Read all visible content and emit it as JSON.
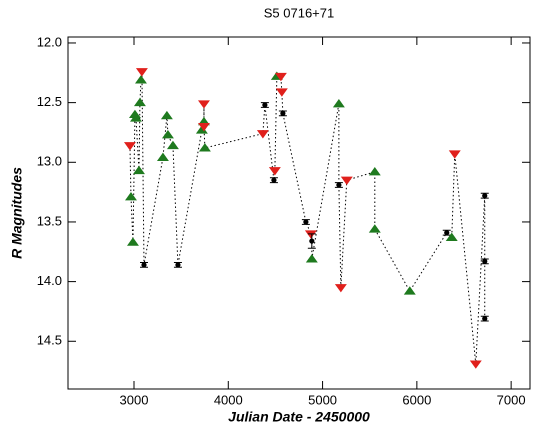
{
  "chart_data": {
    "type": "scatter",
    "title": "S5 0716+71",
    "x_label": "Julian Date - 2450000",
    "y_label": "R Magnitudes",
    "x": [
      2957,
      2968,
      2989,
      3010,
      3021,
      3053,
      3063,
      3074,
      3084,
      3106,
      3307,
      3349,
      3360,
      3413,
      3466,
      3720,
      3742,
      3742,
      3742,
      3752,
      4367,
      4388,
      4484,
      4494,
      4515,
      4558,
      4568,
      4579,
      4823,
      4876,
      4886,
      4886,
      5173,
      5173,
      5194,
      5257,
      5554,
      5554,
      5925,
      6317,
      6370,
      6402,
      6625,
      6720,
      6720,
      6720
    ],
    "y": [
      12.86,
      13.29,
      13.67,
      12.6,
      12.63,
      13.07,
      12.5,
      12.31,
      12.24,
      13.86,
      12.96,
      12.61,
      12.77,
      12.86,
      13.86,
      12.73,
      12.66,
      12.51,
      12.7,
      12.88,
      12.76,
      12.52,
      13.15,
      13.07,
      12.28,
      12.28,
      12.41,
      12.59,
      13.5,
      13.6,
      13.66,
      13.81,
      12.51,
      13.19,
      14.05,
      13.15,
      13.08,
      13.56,
      14.08,
      13.59,
      13.63,
      12.93,
      14.69,
      13.28,
      13.83,
      14.31
    ],
    "errors": [
      null,
      null,
      null,
      null,
      null,
      null,
      null,
      null,
      null,
      0.02,
      null,
      null,
      null,
      null,
      0.02,
      null,
      null,
      null,
      null,
      null,
      null,
      0.02,
      0.02,
      null,
      null,
      null,
      null,
      0.02,
      0.02,
      null,
      0.06,
      null,
      null,
      0.02,
      null,
      null,
      null,
      null,
      null,
      0.02,
      null,
      null,
      null,
      0.02,
      0.02,
      0.02
    ],
    "markers": [
      "down",
      "up",
      "up",
      "up",
      "up",
      "up",
      "up",
      "up",
      "down",
      "circle",
      "up",
      "up",
      "up",
      "up",
      "circle",
      "up",
      "up",
      "down",
      "down",
      "up",
      "down",
      "circle",
      "circle",
      "down",
      "up",
      "down",
      "down",
      "circle",
      "circle",
      "down",
      "circle",
      "up",
      "up",
      "circle",
      "down",
      "down",
      "up",
      "up",
      "up",
      "circle",
      "up",
      "down",
      "down",
      "circle",
      "circle",
      "circle"
    ],
    "marker_colors": {
      "circle": "#000000",
      "up": "#1f7a1f",
      "down": "#e0201c"
    },
    "line_style": "dotted",
    "xlim": [
      2300,
      7200
    ],
    "xticks": [
      3000,
      4000,
      5000,
      6000,
      7000
    ],
    "ylim": [
      14.9,
      11.95
    ],
    "yticks": [
      {
        "value": 12,
        "label": "12.0"
      },
      12.5,
      {
        "value": 13,
        "label": "13.0"
      },
      13.5,
      {
        "value": 14,
        "label": "14.0"
      },
      14.5
    ]
  }
}
